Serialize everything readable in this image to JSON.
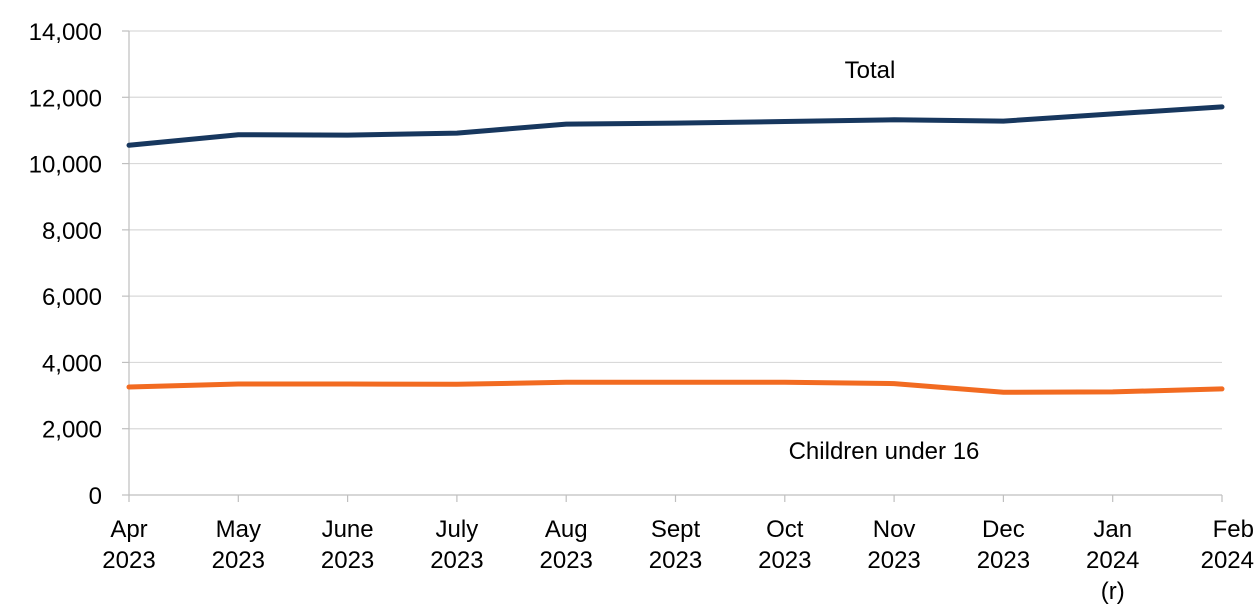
{
  "chart_data": {
    "type": "line",
    "title": "",
    "xlabel": "",
    "ylabel": "",
    "categories": [
      {
        "lines": [
          "Apr",
          "2023"
        ]
      },
      {
        "lines": [
          "May",
          "2023"
        ]
      },
      {
        "lines": [
          "June",
          "2023"
        ]
      },
      {
        "lines": [
          "July",
          "2023"
        ]
      },
      {
        "lines": [
          "Aug",
          "2023"
        ]
      },
      {
        "lines": [
          "Sept",
          "2023"
        ]
      },
      {
        "lines": [
          "Oct",
          "2023"
        ]
      },
      {
        "lines": [
          "Nov",
          "2023"
        ]
      },
      {
        "lines": [
          "Dec",
          "2023"
        ]
      },
      {
        "lines": [
          "Jan",
          "2024",
          "(r)"
        ]
      },
      {
        "lines": [
          "Feb",
          "2024"
        ]
      }
    ],
    "ylim": [
      0,
      14000
    ],
    "yticks": [
      0,
      2000,
      4000,
      6000,
      8000,
      10000,
      12000,
      14000
    ],
    "ytick_labels": [
      "0",
      "2,000",
      "4,000",
      "6,000",
      "8,000",
      "10,000",
      "12,000",
      "14,000"
    ],
    "grid": true,
    "legend": "none (series labelled directly on chart)",
    "series": [
      {
        "name": "Total",
        "color": "#17375e",
        "values": [
          10550,
          10870,
          10860,
          10920,
          11190,
          11220,
          11270,
          11320,
          11280,
          11500,
          11710
        ]
      },
      {
        "name": "Children under 16",
        "color": "#f26b21",
        "values": [
          3260,
          3350,
          3350,
          3340,
          3400,
          3400,
          3400,
          3360,
          3100,
          3110,
          3200
        ]
      }
    ]
  }
}
